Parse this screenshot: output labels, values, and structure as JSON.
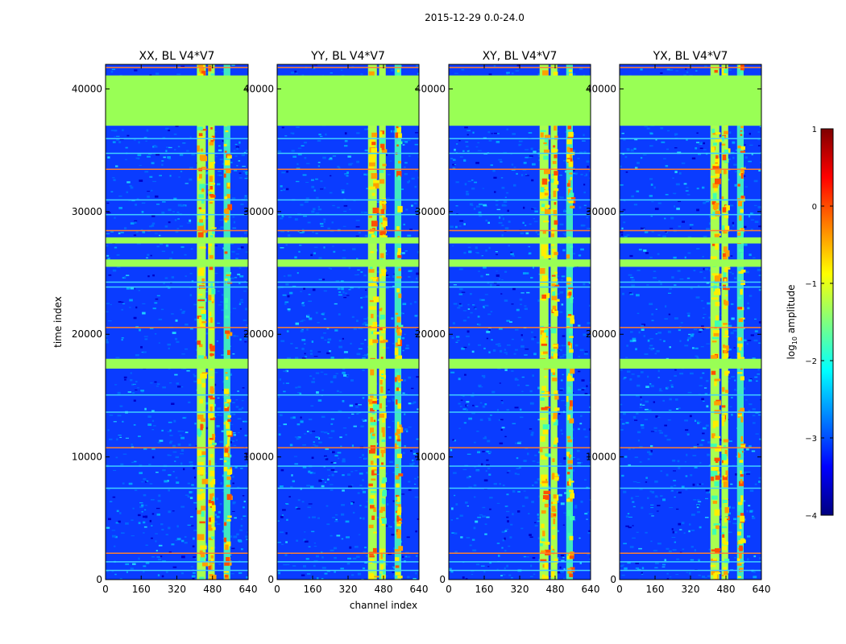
{
  "chart_data": {
    "type": "heatmap",
    "suptitle": "2015-12-29 0.0-24.0",
    "xlabel": "channel index",
    "ylabel": "time index",
    "xlim": [
      0,
      640
    ],
    "ylim": [
      0,
      42000
    ],
    "x_ticks": [
      0,
      160,
      320,
      480,
      640
    ],
    "x_tick_labels": [
      "0",
      "160",
      "320",
      "480",
      "640"
    ],
    "y_ticks": [
      0,
      10000,
      20000,
      30000,
      40000
    ],
    "y_tick_labels": [
      "0",
      "10000",
      "20000",
      "30000",
      "40000"
    ],
    "panels": [
      {
        "title": "XX, BL V4*V7"
      },
      {
        "title": "YY, BL V4*V7"
      },
      {
        "title": "XY, BL V4*V7"
      },
      {
        "title": "YX, BL V4*V7"
      }
    ],
    "colorbar": {
      "label_main": "log",
      "label_sub": "10",
      "label_tail": " amplitude",
      "range": [
        -4,
        1
      ],
      "ticks": [
        1,
        0,
        -1,
        -2,
        -3,
        -4
      ],
      "tick_labels": [
        "1",
        "0",
        "−1",
        "−2",
        "−3",
        "−4"
      ],
      "colormap": [
        "#00007f",
        "#0000ff",
        "#007fff",
        "#00ffff",
        "#7fff7f",
        "#ffff00",
        "#ff7f00",
        "#ff0000",
        "#7f0000"
      ]
    },
    "bands": {
      "flagged_time_ranges": [
        [
          37000,
          41100
        ],
        [
          27400,
          27900
        ],
        [
          25500,
          26100
        ],
        [
          17200,
          18000
        ]
      ],
      "bright_channel_ranges": [
        [
          410,
          450
        ],
        [
          460,
          490
        ],
        [
          530,
          560
        ]
      ],
      "horizontal_line_rows": [
        41800,
        36000,
        34800,
        33500,
        31000,
        29800,
        28500,
        24300,
        23900,
        20600,
        15100,
        13700,
        10800,
        9300,
        7500,
        2200,
        1500,
        800
      ]
    }
  }
}
